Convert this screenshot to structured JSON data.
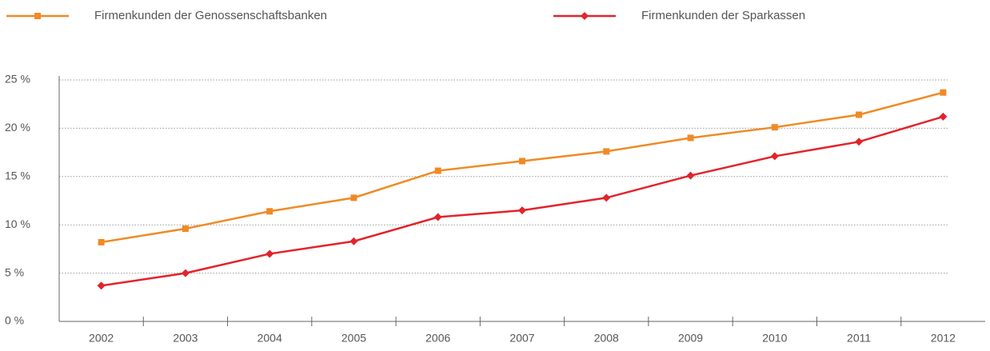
{
  "chart_data": {
    "type": "line",
    "categories": [
      "2002",
      "2003",
      "2004",
      "2005",
      "2006",
      "2007",
      "2008",
      "2009",
      "2010",
      "2011",
      "2012"
    ],
    "series": [
      {
        "name": "Firmenkunden der Genossenschaftsbanken",
        "color": "#f08a24",
        "marker": "square",
        "values": [
          8.2,
          9.6,
          11.4,
          12.8,
          15.6,
          16.6,
          17.6,
          19.0,
          20.1,
          21.4,
          23.7
        ]
      },
      {
        "name": "Firmenkunden der Sparkassen",
        "color": "#e3232b",
        "marker": "diamond",
        "values": [
          3.7,
          5.0,
          7.0,
          8.3,
          10.8,
          11.5,
          12.8,
          15.1,
          17.1,
          18.6,
          21.2
        ]
      }
    ],
    "ylim": [
      0,
      25
    ],
    "yticks": [
      {
        "value": 0,
        "label": "0 %"
      },
      {
        "value": 5,
        "label": "5 %"
      },
      {
        "value": 10,
        "label": "10 %"
      },
      {
        "value": 15,
        "label": "15 %"
      },
      {
        "value": 20,
        "label": "20 %"
      },
      {
        "value": 25,
        "label": "25 %"
      }
    ],
    "grid": true,
    "legend": "top"
  }
}
